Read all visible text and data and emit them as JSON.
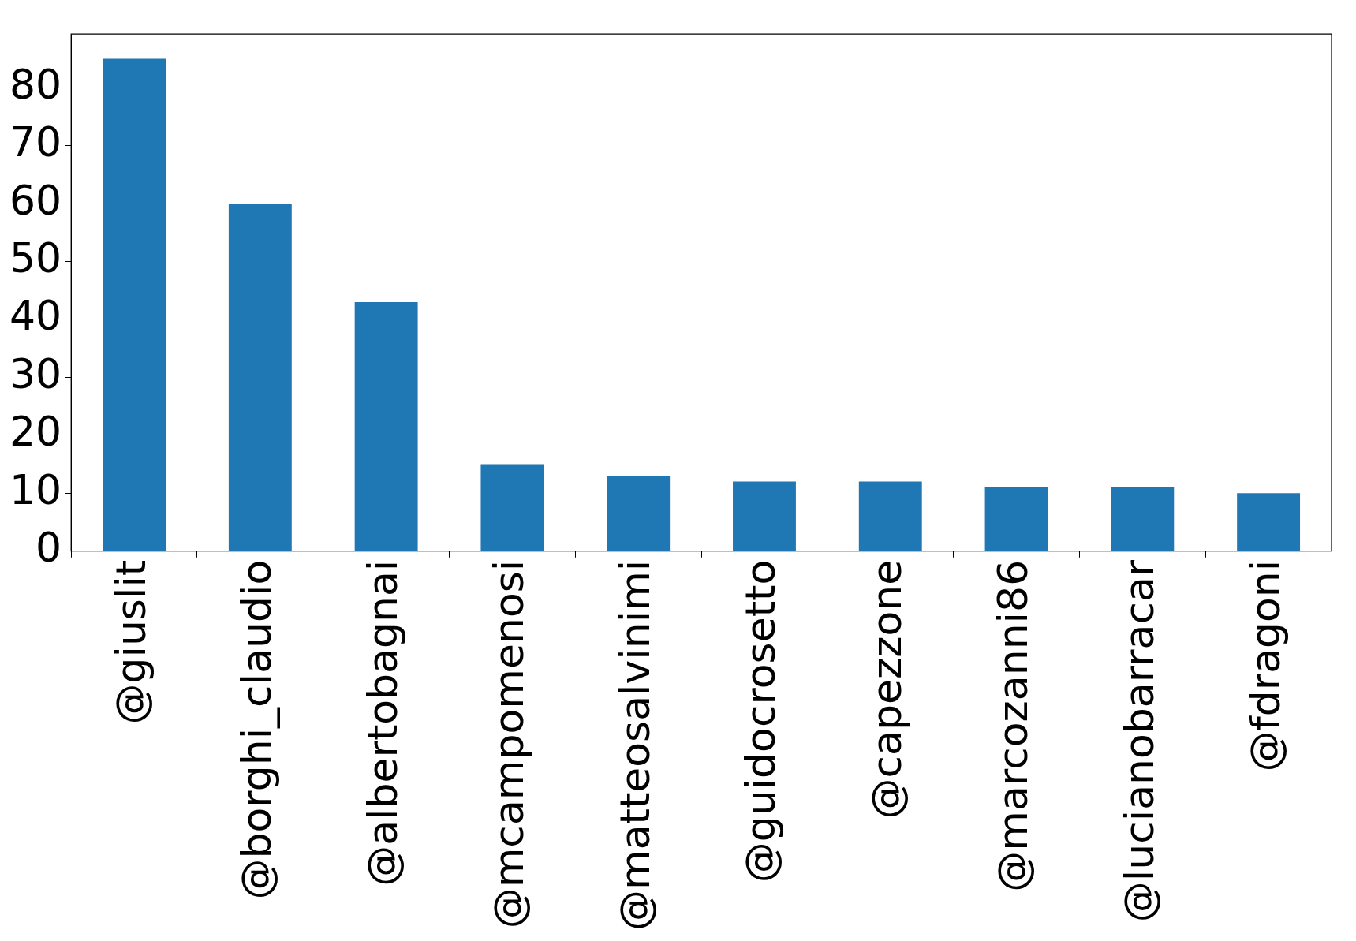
{
  "chart_data": {
    "type": "bar",
    "categories": [
      "@giuslit",
      "@borghi_claudio",
      "@albertobagnai",
      "@mcampomenosi",
      "@matteosalvinimi",
      "@guidocrosetto",
      "@capezzone",
      "@marcozanni86",
      "@lucianobarracar",
      "@fdragoni"
    ],
    "values": [
      85,
      60,
      43,
      15,
      13,
      12,
      12,
      11,
      11,
      10
    ],
    "color": "#1f77b4",
    "ylim": [
      0,
      89.25
    ],
    "yticks": [
      0,
      10,
      20,
      30,
      40,
      50,
      60,
      70,
      80
    ],
    "grid": false,
    "legend": false
  }
}
